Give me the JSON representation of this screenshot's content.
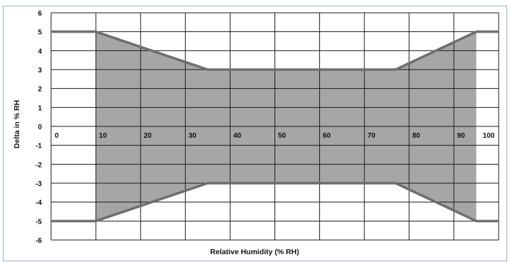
{
  "colors": {
    "border": "#8fb3cf",
    "grid": "#1a1a1a",
    "fill": "#a6a6a6",
    "envelope_line": "#6e6e6e"
  },
  "chart_data": {
    "type": "area",
    "xlabel": "Relative Humidity (% RH)",
    "ylabel": "Delta in % RH",
    "xlim": [
      0,
      100
    ],
    "ylim": [
      -6,
      6
    ],
    "grid": true,
    "x_tick_values": [
      0,
      10,
      20,
      30,
      40,
      50,
      60,
      70,
      80,
      90,
      100
    ],
    "x_tick_labels": [
      "0",
      "10",
      "20",
      "30",
      "40",
      "50",
      "60",
      "70",
      "80",
      "90",
      "100"
    ],
    "y_tick_values": [
      6,
      5,
      4,
      3,
      2,
      1,
      0,
      -1,
      -2,
      -3,
      -4,
      -5,
      -6
    ],
    "y_tick_labels": [
      "6",
      "5",
      "4",
      "3",
      "2",
      "1",
      "0",
      "-1",
      "-2",
      "-3",
      "-4",
      "-5",
      "-6"
    ],
    "series": [
      {
        "role": "upper_bound",
        "x": [
          0,
          10,
          35,
          77,
          95,
          100
        ],
        "y": [
          5,
          5,
          3,
          3,
          5,
          5
        ]
      },
      {
        "role": "lower_bound",
        "x": [
          0,
          10,
          35,
          77,
          95,
          100
        ],
        "y": [
          -5,
          -5,
          -3,
          -3,
          -5,
          -5
        ]
      }
    ],
    "shaded_region": {
      "x_from": 10,
      "x_to": 95
    }
  }
}
